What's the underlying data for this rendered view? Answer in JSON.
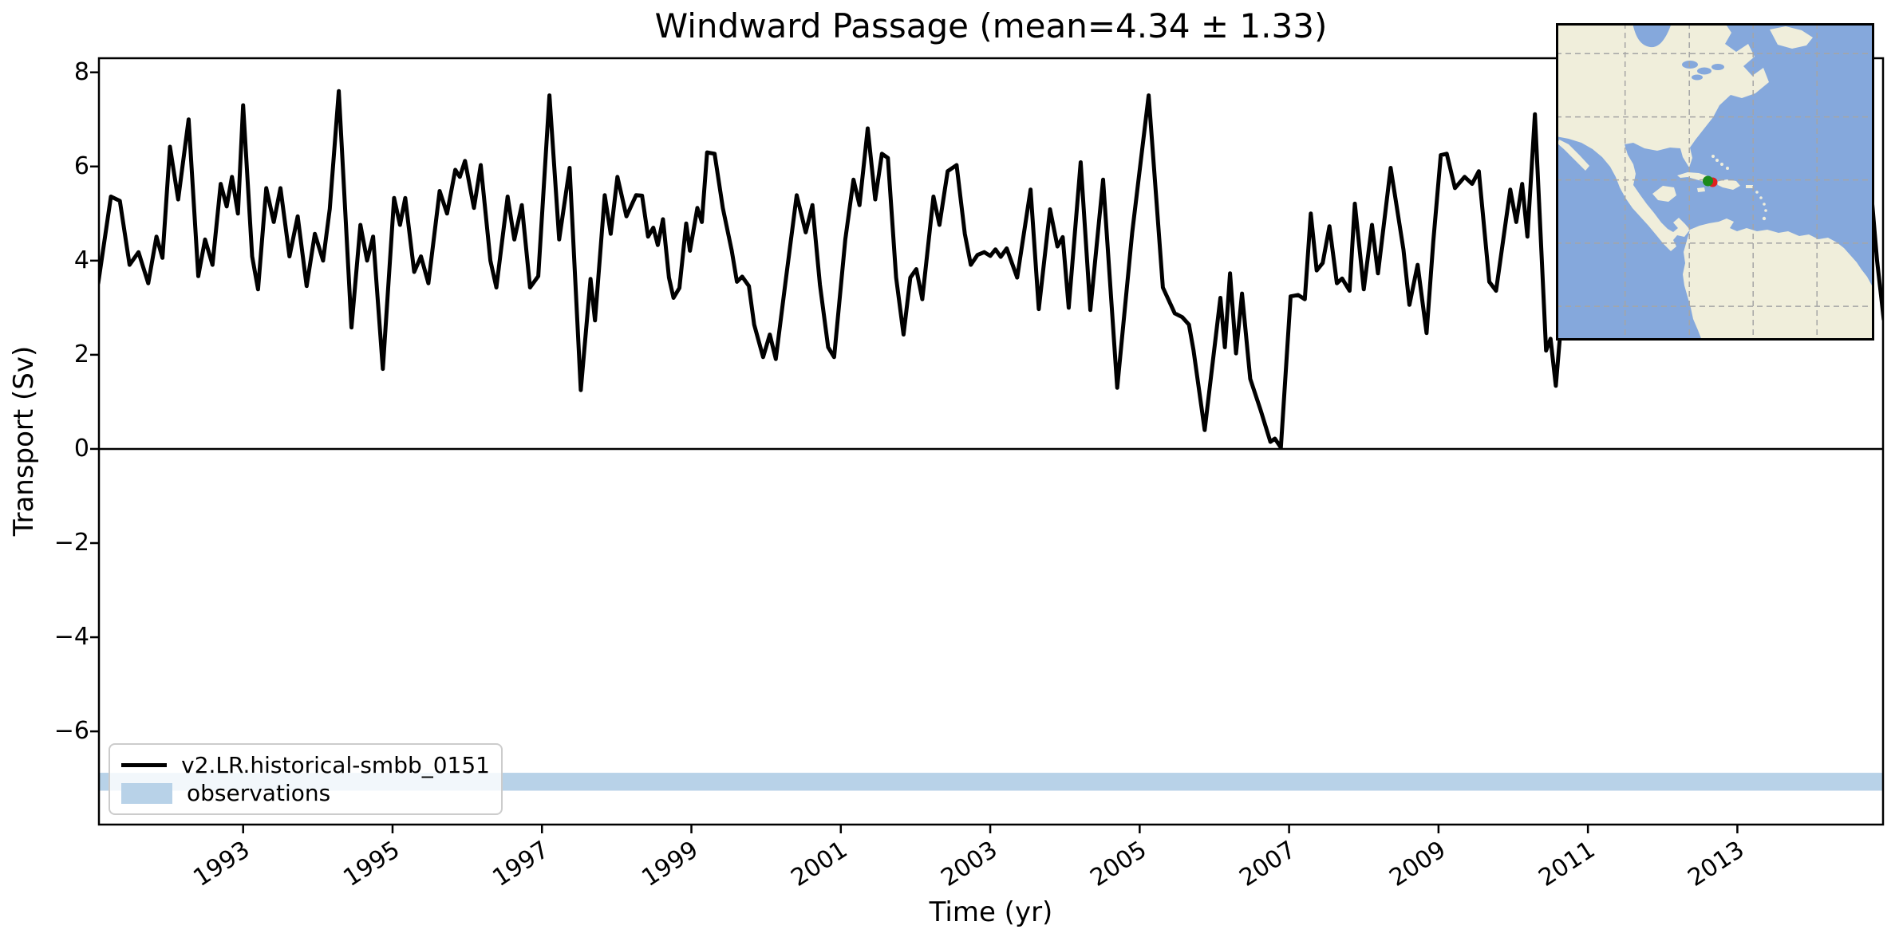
{
  "title": "Windward Passage (mean=4.34 ± 1.33)",
  "axes": {
    "xlabel": "Time (yr)",
    "ylabel": "Transport (Sv)",
    "xtick_labels": [
      "1993",
      "1995",
      "1997",
      "1999",
      "2001",
      "2003",
      "2005",
      "2007",
      "2009",
      "2011",
      "2013"
    ],
    "ytick_labels": [
      "8",
      "6",
      "4",
      "2",
      "0",
      "−2",
      "−4",
      "−6"
    ]
  },
  "legend": {
    "items": [
      {
        "label": "v2.LR.historical-smbb_0151",
        "swatch": "line",
        "color": "#000000"
      },
      {
        "label": "observations",
        "swatch": "patch",
        "color": "#b8d2e8"
      }
    ]
  },
  "chart_data": {
    "type": "line",
    "title": "Windward Passage (mean=4.34 ± 1.33)",
    "xlabel": "Time (yr)",
    "ylabel": "Transport (Sv)",
    "mean": 4.34,
    "std": 1.33,
    "xlim": [
      1991.07,
      2014.95
    ],
    "ylim": [
      -7.98,
      8.3
    ],
    "xticks": [
      1993,
      1995,
      1997,
      1999,
      2001,
      2003,
      2005,
      2007,
      2009,
      2011,
      2013
    ],
    "yticks": [
      8,
      6,
      4,
      2,
      0,
      -2,
      -4,
      -6
    ],
    "grid": false,
    "legend_position": "lower left",
    "zero_line": 0,
    "observations_band": {
      "ymin": -7.26,
      "ymax": -6.88,
      "color": "#b8d2e8",
      "label": "observations"
    },
    "series": [
      {
        "name": "v2.LR.historical-smbb_0151",
        "color": "#000000",
        "linewidth": 5,
        "x": [
          1991.06,
          1991.23,
          1991.35,
          1991.48,
          1991.6,
          1991.73,
          1991.84,
          1991.92,
          1992.02,
          1992.13,
          1992.27,
          1992.4,
          1992.49,
          1992.59,
          1992.7,
          1992.78,
          1992.85,
          1992.93,
          1993.0,
          1993.12,
          1993.2,
          1993.31,
          1993.41,
          1993.5,
          1993.62,
          1993.73,
          1993.85,
          1993.96,
          1994.07,
          1994.16,
          1994.28,
          1994.45,
          1994.57,
          1994.66,
          1994.74,
          1994.87,
          1995.02,
          1995.1,
          1995.17,
          1995.29,
          1995.38,
          1995.48,
          1995.63,
          1995.73,
          1995.84,
          1995.9,
          1995.97,
          1996.09,
          1996.18,
          1996.31,
          1996.39,
          1996.54,
          1996.63,
          1996.73,
          1996.84,
          1996.95,
          1997.1,
          1997.23,
          1997.37,
          1997.52,
          1997.65,
          1997.71,
          1997.84,
          1997.92,
          1998.01,
          1998.13,
          1998.26,
          1998.34,
          1998.42,
          1998.49,
          1998.55,
          1998.62,
          1998.7,
          1998.76,
          1998.84,
          1998.93,
          1998.98,
          1999.08,
          1999.14,
          1999.21,
          1999.31,
          1999.42,
          1999.54,
          1999.61,
          1999.68,
          1999.77,
          1999.84,
          1999.96,
          2000.05,
          2000.13,
          2000.26,
          2000.41,
          2000.53,
          2000.62,
          2000.72,
          2000.83,
          2000.91,
          2001.06,
          2001.17,
          2001.25,
          2001.36,
          2001.46,
          2001.55,
          2001.63,
          2001.74,
          2001.84,
          2001.93,
          2002.01,
          2002.09,
          2002.24,
          2002.32,
          2002.43,
          2002.55,
          2002.66,
          2002.74,
          2002.83,
          2002.92,
          2003.0,
          2003.07,
          2003.14,
          2003.22,
          2003.36,
          2003.54,
          2003.65,
          2003.8,
          2003.9,
          2003.97,
          2004.05,
          2004.21,
          2004.34,
          2004.51,
          2004.7,
          2004.9,
          2005.12,
          2005.31,
          2005.47,
          2005.57,
          2005.66,
          2005.72,
          2005.87,
          2006.08,
          2006.14,
          2006.21,
          2006.29,
          2006.37,
          2006.48,
          2006.62,
          2006.75,
          2006.81,
          2006.89,
          2007.02,
          2007.12,
          2007.21,
          2007.29,
          2007.37,
          2007.45,
          2007.54,
          2007.64,
          2007.71,
          2007.81,
          2007.88,
          2008.0,
          2008.11,
          2008.19,
          2008.36,
          2008.53,
          2008.61,
          2008.72,
          2008.84,
          2008.93,
          2009.03,
          2009.11,
          2009.22,
          2009.35,
          2009.45,
          2009.54,
          2009.68,
          2009.77,
          2009.96,
          2010.04,
          2010.12,
          2010.19,
          2010.29,
          2010.44,
          2010.5,
          2010.57,
          2010.7,
          2010.79,
          2010.88,
          2010.96,
          2011.08,
          2011.17,
          2011.29,
          2011.38,
          2011.5,
          2011.63,
          2011.75,
          2011.83,
          2011.96,
          2012.08,
          2012.21,
          2012.33,
          2012.42,
          2012.54,
          2012.63,
          2012.75,
          2012.83,
          2012.96,
          2013.08,
          2013.17,
          2013.29,
          2013.42,
          2013.54,
          2013.63,
          2013.75,
          2013.83,
          2013.96,
          2014.08,
          2014.21,
          2014.33,
          2014.46,
          2014.58,
          2014.67,
          2014.79,
          2014.87,
          2014.96
        ],
        "y": [
          3.52,
          5.36,
          5.27,
          3.91,
          4.18,
          3.52,
          4.51,
          4.06,
          6.42,
          5.3,
          7.0,
          3.67,
          4.45,
          3.91,
          5.63,
          5.15,
          5.78,
          5.0,
          7.3,
          4.09,
          3.39,
          5.54,
          4.82,
          5.54,
          4.09,
          4.94,
          3.46,
          4.57,
          4.0,
          5.1,
          7.6,
          2.58,
          4.76,
          4.0,
          4.51,
          1.7,
          5.33,
          4.76,
          5.33,
          3.76,
          4.09,
          3.52,
          5.48,
          5.0,
          5.93,
          5.78,
          6.12,
          5.12,
          6.03,
          4.0,
          3.43,
          5.36,
          4.45,
          5.18,
          3.43,
          3.67,
          7.51,
          4.45,
          5.97,
          1.25,
          3.61,
          2.73,
          5.39,
          4.57,
          5.78,
          4.94,
          5.39,
          5.38,
          4.51,
          4.7,
          4.33,
          4.88,
          3.64,
          3.21,
          3.42,
          4.79,
          4.21,
          5.12,
          4.82,
          6.3,
          6.27,
          5.12,
          4.21,
          3.55,
          3.66,
          3.46,
          2.64,
          1.95,
          2.43,
          1.91,
          3.55,
          5.39,
          4.6,
          5.18,
          3.49,
          2.16,
          1.95,
          4.45,
          5.72,
          5.18,
          6.81,
          5.3,
          6.27,
          6.18,
          3.64,
          2.43,
          3.64,
          3.82,
          3.18,
          5.36,
          4.76,
          5.9,
          6.03,
          4.57,
          3.91,
          4.12,
          4.18,
          4.1,
          4.24,
          4.08,
          4.26,
          3.64,
          5.51,
          2.97,
          5.09,
          4.3,
          4.5,
          3.0,
          6.09,
          2.95,
          5.72,
          1.3,
          4.6,
          7.51,
          3.43,
          2.88,
          2.8,
          2.64,
          2.1,
          0.4,
          3.21,
          2.16,
          3.73,
          2.03,
          3.3,
          1.49,
          0.82,
          0.15,
          0.22,
          0.03,
          3.24,
          3.27,
          3.18,
          5.0,
          3.79,
          3.95,
          4.73,
          3.52,
          3.62,
          3.36,
          5.21,
          3.39,
          4.76,
          3.73,
          5.97,
          4.24,
          3.06,
          3.91,
          2.46,
          4.4,
          6.24,
          6.27,
          5.54,
          5.78,
          5.63,
          5.9,
          3.55,
          3.36,
          5.51,
          4.82,
          5.63,
          4.51,
          7.11,
          2.09,
          2.34,
          1.34,
          3.8,
          4.6,
          3.9,
          5.2,
          4.4,
          5.6,
          4.7,
          5.9,
          4.9,
          3.6,
          4.8,
          4.1,
          5.4,
          4.5,
          5.8,
          4.9,
          6.1,
          5.0,
          4.2,
          5.3,
          4.4,
          5.6,
          4.6,
          5.2,
          4.3,
          5.7,
          4.8,
          3.9,
          5.1,
          4.5,
          5.8,
          4.7,
          5.5,
          4.6,
          6.0,
          5.2,
          4.4,
          5.5,
          4.0,
          2.75
        ]
      }
    ]
  },
  "inset_map": {
    "description": "Caribbean / Americas locator map with station marker at Windward Passage",
    "ocean_color": "#85a8dc",
    "land_color": "#f0eedb",
    "gridline_color": "#a5a5a5",
    "border_color": "#000000",
    "marker_red_color": "#e02020",
    "marker_green_color": "#1c8a1c"
  }
}
